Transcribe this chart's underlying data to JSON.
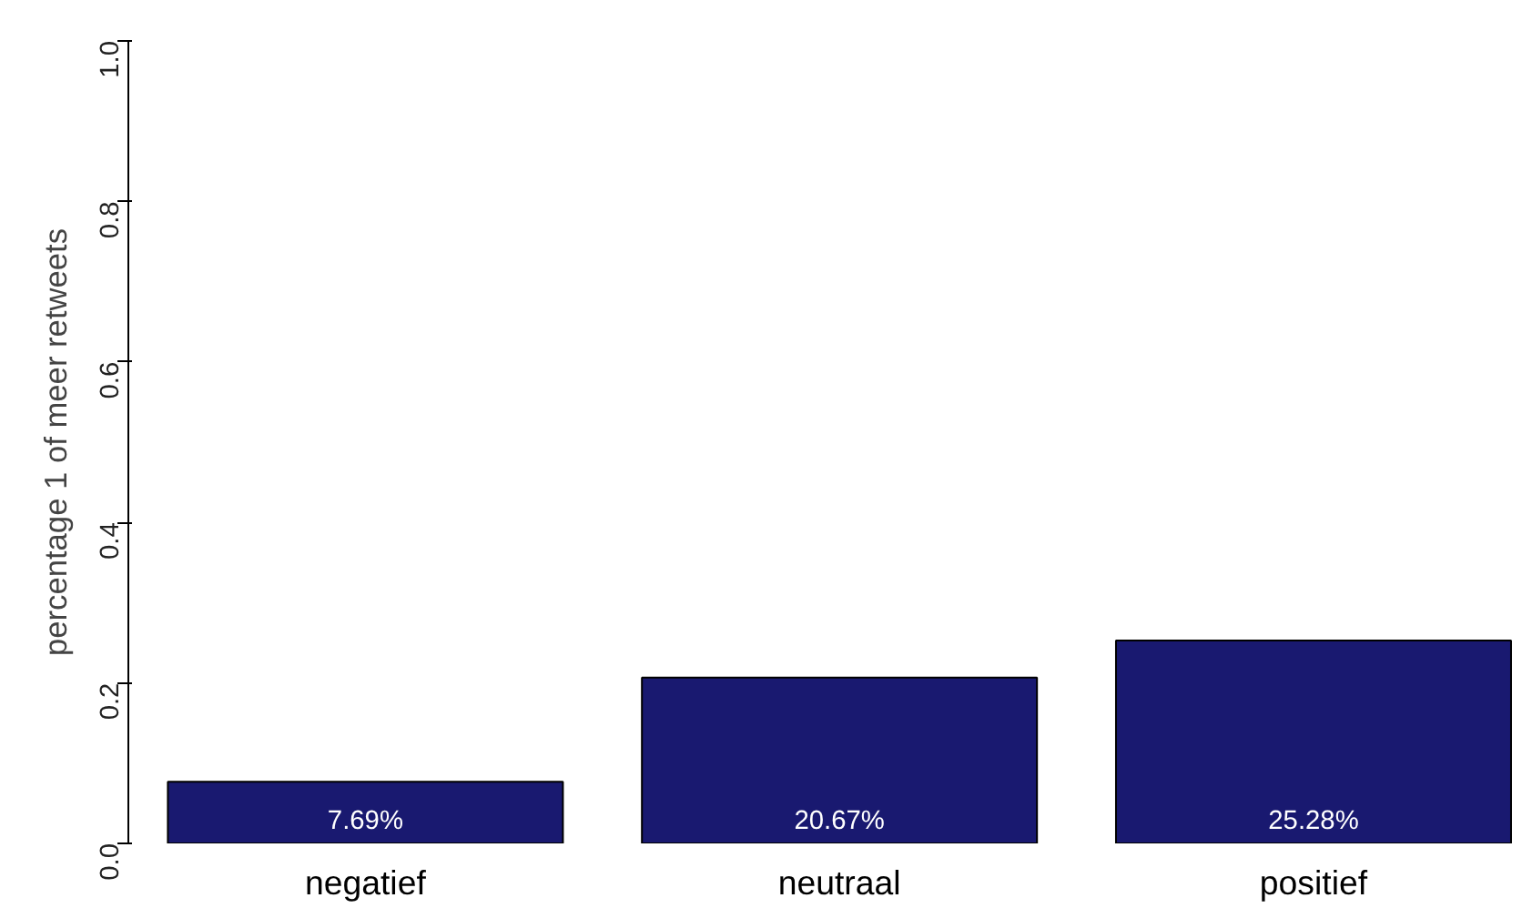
{
  "chart_data": {
    "type": "bar",
    "ylabel": "percentage 1 of meer retweets",
    "categories": [
      "negatief",
      "neutraal",
      "positief"
    ],
    "values": [
      0.0769,
      0.2067,
      0.2528
    ],
    "value_labels": [
      "7.69%",
      "20.67%",
      "25.28%"
    ],
    "color": "#191970",
    "ylim": [
      0,
      1
    ],
    "yticks": [
      {
        "value": 0,
        "label": "0.0"
      },
      0.2,
      0.4,
      0.6,
      0.8,
      {
        "value": 1,
        "label": "1.0"
      }
    ],
    "grid": false
  }
}
